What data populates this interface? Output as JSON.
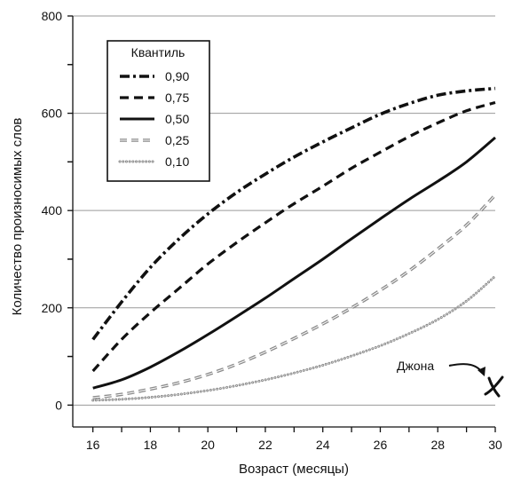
{
  "chart_data": {
    "type": "line",
    "xlabel": "Возраст (месяцы)",
    "ylabel": "Количество произносимых слов",
    "xlim": [
      15.3,
      30
    ],
    "ylim": [
      -45,
      800
    ],
    "x_ticks": [
      16,
      18,
      20,
      22,
      24,
      26,
      28,
      30
    ],
    "y_ticks": [
      0,
      200,
      400,
      600,
      800
    ],
    "grid": "horizontal",
    "legend": {
      "title": "Квантиль",
      "position": "top-left"
    },
    "x": [
      16,
      17,
      18,
      19,
      20,
      21,
      22,
      23,
      24,
      25,
      26,
      27,
      28,
      29,
      30
    ],
    "series": [
      {
        "name": "0,90",
        "style": "dash-dot",
        "color": "#111111",
        "values": [
          135,
          212,
          283,
          342,
          393,
          437,
          475,
          510,
          541,
          570,
          598,
          620,
          637,
          646,
          651
        ]
      },
      {
        "name": "0,75",
        "style": "dashed",
        "color": "#111111",
        "values": [
          70,
          135,
          190,
          240,
          290,
          334,
          375,
          414,
          450,
          487,
          520,
          552,
          580,
          605,
          622
        ]
      },
      {
        "name": "0,50",
        "style": "solid",
        "color": "#111111",
        "values": [
          35,
          52,
          78,
          110,
          145,
          182,
          220,
          260,
          300,
          342,
          383,
          423,
          460,
          500,
          550
        ]
      },
      {
        "name": "0,25",
        "style": "double-dashed",
        "color": "#8a8a8a",
        "values": [
          15,
          22,
          33,
          46,
          63,
          84,
          109,
          137,
          167,
          200,
          236,
          276,
          321,
          370,
          432
        ]
      },
      {
        "name": "0,10",
        "style": "dotted",
        "color": "#8a8a8a",
        "values": [
          10,
          12,
          16,
          22,
          30,
          40,
          52,
          66,
          82,
          101,
          122,
          147,
          176,
          214,
          265
        ]
      }
    ],
    "annotations": [
      {
        "text": "Джона",
        "marker": "X",
        "x": 30,
        "y": 40
      }
    ]
  }
}
